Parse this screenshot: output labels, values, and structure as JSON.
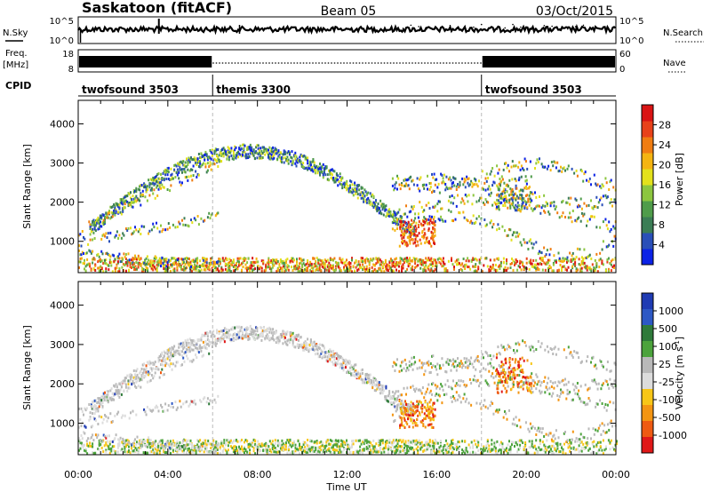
{
  "header": {
    "station": "Saskatoon (fitACF)",
    "beam": "Beam 05",
    "date": "03/Oct/2015"
  },
  "top_panels": {
    "nsky_label": "N.Sky",
    "nsky_ticks": [
      "10^5",
      "10^0"
    ],
    "nsearch_label": "N.Search",
    "nsearch_ticks": [
      "10^5",
      "10^0"
    ],
    "freq_label": "Freq.",
    "freq_unit": "[MHz]",
    "freq_ticks": [
      "18",
      "8"
    ],
    "nave_label": "Nave",
    "nave_ticks": [
      "60",
      "0"
    ],
    "cpid_label": "CPID",
    "cpid_segments": [
      {
        "label": "twofsound 3503",
        "start": "00:00",
        "end": "06:00"
      },
      {
        "label": "themis 3300",
        "start": "06:00",
        "end": "18:00"
      },
      {
        "label": "twofsound 3503",
        "start": "18:00",
        "end": "24:00"
      }
    ]
  },
  "colors": {
    "power": [
      "#0b22e6",
      "#2a4fb8",
      "#3b7d55",
      "#4f9c4a",
      "#8cc63f",
      "#e3e11c",
      "#f4b411",
      "#f07d12",
      "#e8421a",
      "#d91414"
    ],
    "velocity": [
      "#1f3bb3",
      "#2d58c4",
      "#2f7a3a",
      "#4ca33c",
      "#b9b9b9",
      "#dcdcdc",
      "#f7c617",
      "#f39512",
      "#ee5a12",
      "#e01818"
    ]
  },
  "chart_data": [
    {
      "type": "heatmap",
      "panel": "power",
      "ylabel": "Slant Range [km]",
      "yticks": [
        "1000",
        "2000",
        "3000",
        "4000"
      ],
      "ylim": [
        200,
        4600
      ],
      "xlim": [
        "00:00",
        "24:00"
      ],
      "colorbar_label": "Power [dB]",
      "colorbar_ticks": [
        "4",
        "8",
        "12",
        "16",
        "20",
        "24",
        "28"
      ],
      "colorbar_range": [
        0,
        32
      ],
      "features": [
        {
          "name": "ground scatter band",
          "time_start": 0,
          "time_end": 24,
          "range_low": 250,
          "range_high": 600
        },
        {
          "name": "arc",
          "time_start": 0,
          "time_end": 15,
          "range_low": 900,
          "range_high": 3400
        },
        {
          "name": "evening arcs",
          "time_start": 14,
          "time_end": 24,
          "range_low": 900,
          "range_high": 3400
        }
      ]
    },
    {
      "type": "heatmap",
      "panel": "velocity",
      "ylabel": "Slant Range [km]",
      "yticks": [
        "1000",
        "2000",
        "3000",
        "4000"
      ],
      "ylim": [
        200,
        4600
      ],
      "xlim": [
        "00:00",
        "24:00"
      ],
      "xlabel": "Time UT",
      "xticks": [
        "00:00",
        "04:00",
        "08:00",
        "12:00",
        "16:00",
        "20:00",
        "00:00"
      ],
      "colorbar_label": "Velocity [m s",
      "colorbar_unit_sup": "-1",
      "colorbar_label_end": "]",
      "colorbar_ticks": [
        "1000",
        "500",
        "100",
        "25",
        "-25",
        "-100",
        "-500",
        "-1000"
      ]
    }
  ]
}
